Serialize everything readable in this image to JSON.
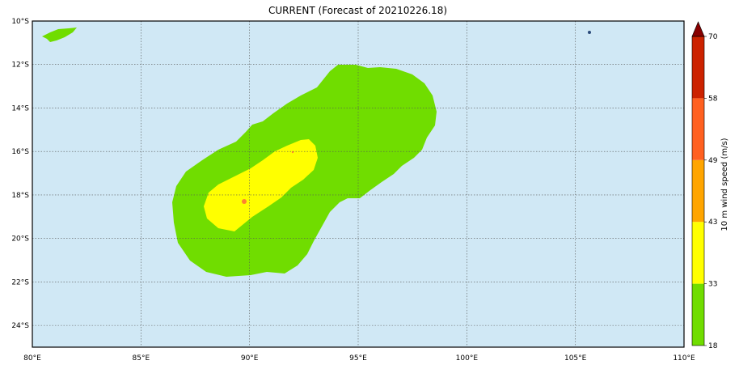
{
  "title": "CURRENT (Forecast of 20210226.18)",
  "map": {
    "lon_range": [
      80,
      110
    ],
    "lat_range": [
      -25,
      -10
    ],
    "lon_ticks": [
      80,
      85,
      90,
      95,
      100,
      105,
      110
    ],
    "lat_ticks": [
      -10,
      -12,
      -14,
      -16,
      -18,
      -20,
      -22,
      -24
    ],
    "lon_labels": [
      "80°E",
      "85°E",
      "90°E",
      "95°E",
      "100°E",
      "105°E",
      "110°E"
    ],
    "lat_labels": [
      "10°S",
      "12°S",
      "14°S",
      "16°S",
      "18°S",
      "20°S",
      "22°S",
      "24°S"
    ],
    "ocean_color": "#d0e8f5",
    "grid": "dotted"
  },
  "colorbar": {
    "label": "10 m wind speed (m/s)",
    "levels": [
      18,
      33,
      43,
      49,
      58,
      70
    ],
    "tick_labels": [
      "18",
      "33",
      "43",
      "49",
      "58",
      "70"
    ],
    "colors": [
      "#70dd00",
      "#ffff00",
      "#ffa500",
      "#ff6020",
      "#cc2200",
      "#880000"
    ]
  }
}
